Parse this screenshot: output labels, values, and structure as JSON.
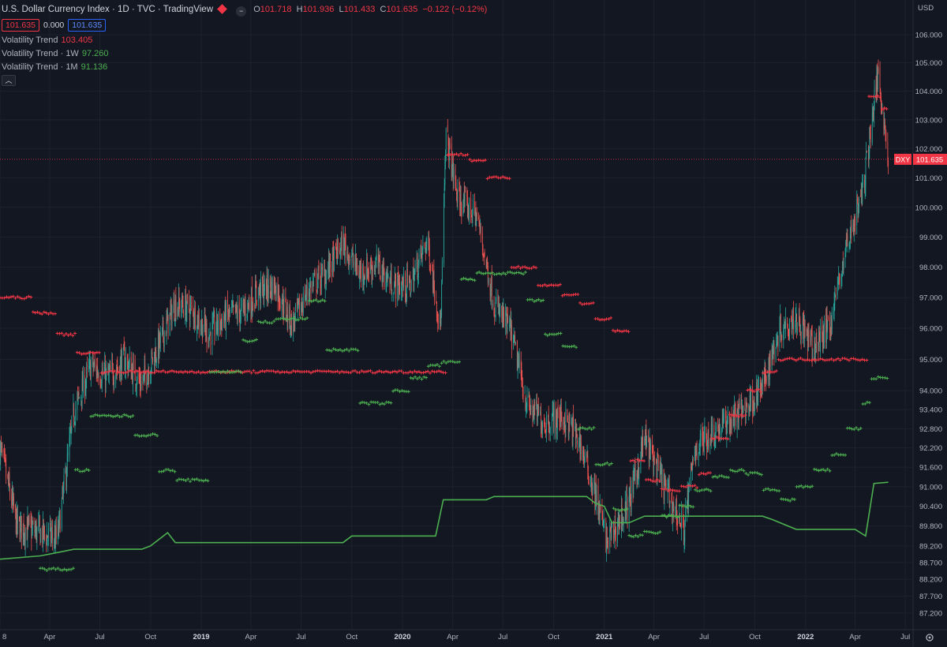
{
  "header": {
    "title": "U.S. Dollar Currency Index · 1D · TVC · TradingView",
    "ohlc": [
      {
        "k": "O",
        "v": "101.718"
      },
      {
        "k": "H",
        "v": "101.936"
      },
      {
        "k": "L",
        "v": "101.433"
      },
      {
        "k": "C",
        "v": "101.635"
      },
      {
        "k": "",
        "v": "−0.122 (−0.12%)"
      }
    ],
    "bid": "101.635",
    "spread": "0.000",
    "ask": "101.635"
  },
  "indicators": [
    {
      "name": "Volatility Trend",
      "value": "103.405",
      "color": "#f23645"
    },
    {
      "name": "Volatility Trend · 1W",
      "value": "97.260",
      "color": "#4caf50"
    },
    {
      "name": "Volatility Trend · 1M",
      "value": "91.136",
      "color": "#4caf50"
    }
  ],
  "price_axis": {
    "currency": "USD",
    "labels": [
      "106.000",
      "105.000",
      "104.000",
      "103.000",
      "102.000",
      "101.000",
      "100.000",
      "99.000",
      "98.000",
      "97.000",
      "96.000",
      "95.000",
      "94.000",
      "93.400",
      "92.800",
      "92.200",
      "91.600",
      "91.000",
      "90.400",
      "89.800",
      "89.200",
      "88.700",
      "88.200",
      "87.700",
      "87.200"
    ]
  },
  "time_axis": {
    "labels": [
      "8",
      "Apr",
      "Jul",
      "Oct",
      "2019",
      "Apr",
      "Jul",
      "Oct",
      "2020",
      "Apr",
      "Jul",
      "Oct",
      "2021",
      "Apr",
      "Jul",
      "Oct",
      "2022",
      "Apr",
      "Jul"
    ]
  },
  "last_price": {
    "symbol": "DXY",
    "value": "101.635"
  },
  "colors": {
    "up": "#26a69a",
    "down": "#ef5350",
    "trend_red": "#f23645",
    "trend_green": "#4caf50",
    "background": "#131722"
  },
  "chart_data": {
    "type": "line",
    "title": "U.S. Dollar Currency Index · 1D · TVC · TradingView",
    "log_scale": true,
    "grid": true,
    "y_axis_side": "right",
    "ylim": [
      86.8,
      106.6
    ],
    "x_range": [
      "2018-01-01",
      "2022-07-15"
    ],
    "series": [
      {
        "name": "U.S. Dollar Currency Index",
        "x": [
          "2018-01-01",
          "2018-02-01",
          "2018-03-15",
          "2018-04-15",
          "2018-05-15",
          "2018-06-15",
          "2018-07-15",
          "2018-08-15",
          "2018-09-15",
          "2018-10-15",
          "2018-11-15",
          "2018-12-15",
          "2019-01-15",
          "2019-02-15",
          "2019-03-15",
          "2019-04-15",
          "2019-05-15",
          "2019-06-15",
          "2019-07-15",
          "2019-08-15",
          "2019-09-15",
          "2019-10-15",
          "2019-11-15",
          "2019-12-15",
          "2020-01-15",
          "2020-02-15",
          "2020-03-10",
          "2020-03-20",
          "2020-04-10",
          "2020-05-15",
          "2020-06-15",
          "2020-07-15",
          "2020-08-15",
          "2020-09-15",
          "2020-10-15",
          "2020-11-15",
          "2020-12-15",
          "2021-01-06",
          "2021-02-15",
          "2021-03-15",
          "2021-04-15",
          "2021-05-25",
          "2021-06-15",
          "2021-07-15",
          "2021-08-15",
          "2021-09-15",
          "2021-10-15",
          "2021-11-15",
          "2021-12-15",
          "2022-01-15",
          "2022-02-15",
          "2022-03-15",
          "2022-04-15",
          "2022-05-13",
          "2022-05-31"
        ],
        "values": [
          92.2,
          89.8,
          89.6,
          89.4,
          93.3,
          94.8,
          94.4,
          95.0,
          94.2,
          95.4,
          96.8,
          96.6,
          95.8,
          96.4,
          96.5,
          97.2,
          97.4,
          96.1,
          97.3,
          97.8,
          98.8,
          97.8,
          98.1,
          97.4,
          97.4,
          98.9,
          96.0,
          102.5,
          100.3,
          99.7,
          96.8,
          95.9,
          93.5,
          93.0,
          93.2,
          92.5,
          90.8,
          89.3,
          90.5,
          92.5,
          91.2,
          89.7,
          92.2,
          92.7,
          93.0,
          93.5,
          94.1,
          96.0,
          96.4,
          95.3,
          96.2,
          98.6,
          100.6,
          104.7,
          101.635
        ],
        "color": "#26a69a"
      },
      {
        "name": "Volatility Trend",
        "x": [
          "2018-01-01",
          "2018-03-01",
          "2018-04-15",
          "2018-05-20",
          "2018-07-01",
          "2020-03-22",
          "2020-05-01",
          "2020-06-01",
          "2020-07-15",
          "2020-09-01",
          "2020-10-15",
          "2020-11-15",
          "2020-12-15",
          "2021-01-15",
          "2021-02-15",
          "2021-03-15",
          "2021-04-15",
          "2021-05-20",
          "2021-06-20",
          "2021-07-15",
          "2021-08-15",
          "2021-09-15",
          "2021-10-15",
          "2021-11-10",
          "2022-04-25",
          "2022-05-20",
          "2022-05-31"
        ],
        "values": [
          97.0,
          96.5,
          95.8,
          95.2,
          94.6,
          101.8,
          101.6,
          101.0,
          98.0,
          97.4,
          97.1,
          96.8,
          96.3,
          95.9,
          91.8,
          91.2,
          90.9,
          91.0,
          91.4,
          92.5,
          93.2,
          94.0,
          94.6,
          95.0,
          103.8,
          103.4,
          103.405
        ],
        "color": "#f23645"
      },
      {
        "name": "Volatility Trend · 1W",
        "x": [
          "2018-03-15",
          "2018-05-15",
          "2018-06-15",
          "2018-09-01",
          "2018-10-15",
          "2018-11-15",
          "2019-01-15",
          "2019-03-15",
          "2019-04-15",
          "2019-05-15",
          "2019-06-15",
          "2019-07-15",
          "2019-08-15",
          "2019-10-15",
          "2019-11-15",
          "2019-12-15",
          "2020-01-15",
          "2020-02-15",
          "2020-03-10",
          "2020-04-15",
          "2020-05-15",
          "2020-08-15",
          "2020-09-15",
          "2020-10-15",
          "2020-11-15",
          "2020-12-15",
          "2021-01-15",
          "2021-02-15",
          "2021-03-15",
          "2021-04-15",
          "2021-05-15",
          "2021-06-15",
          "2021-07-15",
          "2021-08-15",
          "2021-09-15",
          "2021-10-15",
          "2021-11-15",
          "2021-12-15",
          "2022-01-15",
          "2022-02-15",
          "2022-03-15",
          "2022-04-15",
          "2022-05-01",
          "2022-05-31"
        ],
        "values": [
          88.5,
          91.5,
          93.2,
          92.6,
          91.5,
          91.2,
          94.6,
          95.6,
          96.2,
          96.3,
          96.3,
          96.9,
          95.3,
          93.6,
          93.6,
          94.0,
          94.4,
          94.8,
          94.9,
          97.6,
          97.8,
          96.9,
          95.8,
          95.4,
          92.8,
          91.7,
          90.3,
          89.5,
          89.6,
          90.1,
          90.4,
          90.9,
          91.3,
          91.5,
          91.4,
          90.9,
          90.6,
          91.0,
          91.5,
          92.0,
          92.8,
          93.6,
          94.4,
          97.26
        ],
        "color": "#4caf50"
      },
      {
        "name": "Volatility Trend · 1M",
        "x": [
          "2018-01-01",
          "2018-03-15",
          "2018-04-15",
          "2018-05-15",
          "2018-09-15",
          "2018-10-01",
          "2018-11-01",
          "2018-11-15",
          "2019-04-15",
          "2019-05-15",
          "2019-09-15",
          "2019-10-01",
          "2019-11-01",
          "2020-03-01",
          "2020-03-15",
          "2020-06-01",
          "2020-06-15",
          "2020-11-30",
          "2020-12-15",
          "2021-01-01",
          "2021-01-15",
          "2021-02-15",
          "2021-03-01",
          "2021-03-15",
          "2021-10-15",
          "2021-11-01",
          "2021-12-15",
          "2022-04-01",
          "2022-04-20",
          "2022-05-05",
          "2022-05-31"
        ],
        "values": [
          88.8,
          88.9,
          89.0,
          89.1,
          89.1,
          89.2,
          89.6,
          89.3,
          89.3,
          89.3,
          89.3,
          89.5,
          89.5,
          89.5,
          90.6,
          90.6,
          90.7,
          90.7,
          90.5,
          90.4,
          89.9,
          89.9,
          90.0,
          90.1,
          90.1,
          90.0,
          89.7,
          89.7,
          89.5,
          91.1,
          91.136
        ],
        "color": "#4caf50"
      }
    ]
  }
}
